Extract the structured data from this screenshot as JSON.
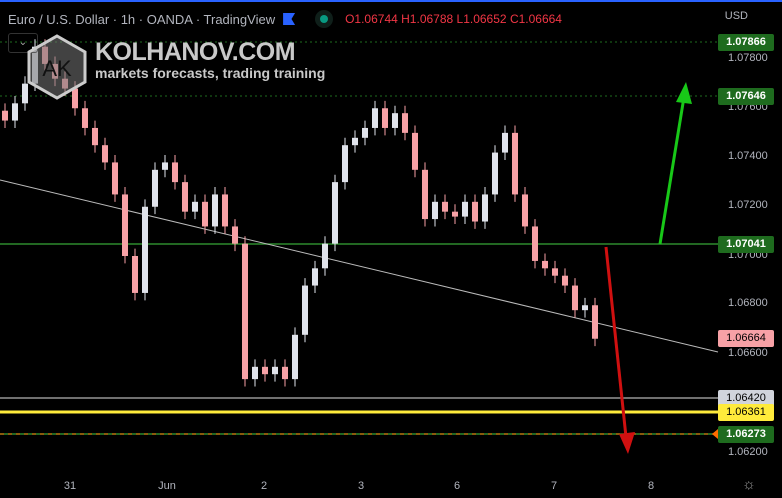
{
  "header": {
    "title": "Euro / U.S. Dollar · 1h · OANDA · TradingView",
    "open": "O1.06744",
    "high": "H1.06788",
    "low": "L1.06652",
    "close": "C1.06664",
    "currency": "USD",
    "collapse_icon": "chevron-down-icon"
  },
  "branding": {
    "logo_text": "AK",
    "site": "KOLHANOV.COM",
    "tagline": "markets forecasts, trading training"
  },
  "colors": {
    "up": "#e0e3eb",
    "down": "#f7a1a6",
    "level_green": "#1e6b1e",
    "arrow_up": "#18c818",
    "arrow_down": "#d01010",
    "yellow": "#ffeb3b"
  },
  "price_axis": [
    "1.07800",
    "1.07600",
    "1.07400",
    "1.07200",
    "1.07000",
    "1.06800",
    "1.06600",
    "1.06200"
  ],
  "price_labels": [
    {
      "value": "1.07866",
      "style": "green"
    },
    {
      "value": "1.07646",
      "style": "green"
    },
    {
      "value": "1.07041",
      "style": "green"
    },
    {
      "value": "1.06664",
      "style": "current"
    },
    {
      "value": "1.06420",
      "style": "white"
    },
    {
      "value": "1.06361",
      "style": "yellow"
    },
    {
      "value": "1.06273",
      "style": "green"
    }
  ],
  "date_axis": [
    "31",
    "Jun",
    "2",
    "3",
    "6",
    "7",
    "8"
  ],
  "chart_data": {
    "type": "candlestick",
    "ylim": [
      1.0614,
      1.0791
    ],
    "closes": [
      1.0755,
      1.0762,
      1.077,
      1.0785,
      1.0778,
      1.0772,
      1.0768,
      1.076,
      1.0752,
      1.0745,
      1.0738,
      1.0725,
      1.07,
      1.0685,
      1.072,
      1.0735,
      1.0738,
      1.073,
      1.0718,
      1.0722,
      1.0712,
      1.0725,
      1.0712,
      1.0705,
      1.065,
      1.0655,
      1.0652,
      1.0655,
      1.065,
      1.0668,
      1.0688,
      1.0695,
      1.0705,
      1.073,
      1.0745,
      1.0748,
      1.0752,
      1.076,
      1.0752,
      1.0758,
      1.075,
      1.0735,
      1.0715,
      1.0722,
      1.0718,
      1.0716,
      1.0722,
      1.0714,
      1.0725,
      1.0742,
      1.075,
      1.0725,
      1.0712,
      1.0698,
      1.0695,
      1.0692,
      1.0688,
      1.0678,
      1.068,
      1.06664
    ],
    "levels": [
      1.07866,
      1.07646,
      1.07041,
      1.0642,
      1.06361,
      1.06273
    ]
  }
}
